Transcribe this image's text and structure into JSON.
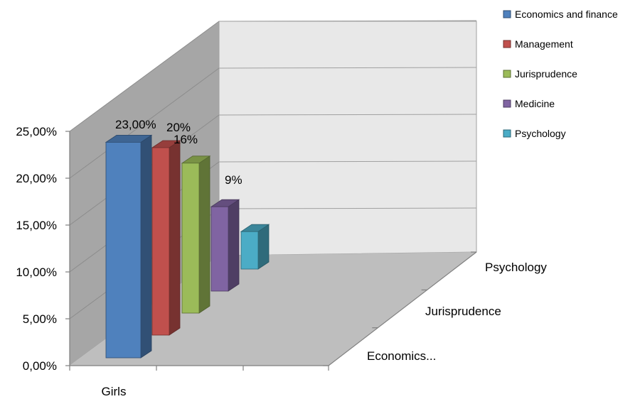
{
  "chart_data": {
    "type": "bar",
    "style": "3d-column",
    "categories": [
      "Girls"
    ],
    "depth_categories": [
      "Economics...",
      "Jurisprudence",
      "Psychology"
    ],
    "yticks": [
      "0,00%",
      "5,00%",
      "10,00%",
      "15,00%",
      "20,00%",
      "25,00%"
    ],
    "ylim": [
      0,
      25
    ],
    "grid": true,
    "legend_position": "right",
    "series": [
      {
        "name": "Economics and finance",
        "values": [
          23
        ],
        "label": "23,00%",
        "color": "#4F81BD"
      },
      {
        "name": "Management",
        "values": [
          20
        ],
        "label": "20%",
        "color": "#C0504D"
      },
      {
        "name": "Jurisprudence",
        "values": [
          16
        ],
        "label": "16%",
        "color": "#9BBB59"
      },
      {
        "name": "Medicine",
        "values": [
          9
        ],
        "label": "9%",
        "color": "#8064A2"
      },
      {
        "name": "Psychology",
        "values": [
          4
        ],
        "label": "",
        "color": "#4BACC6"
      }
    ]
  }
}
